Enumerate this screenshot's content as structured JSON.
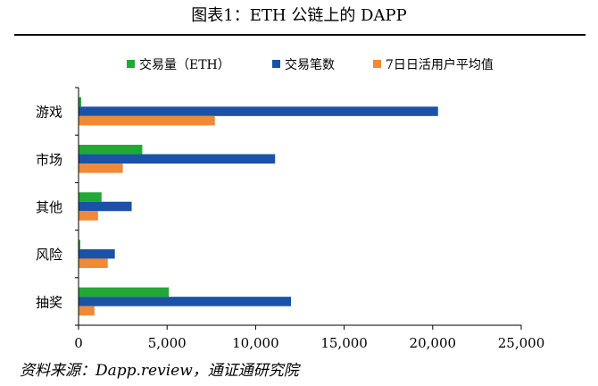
{
  "figure_title": "图表1：ETH 公链上的 DAPP",
  "source_note": "资料来源：Dapp.review，通证通研究院",
  "chart_data": {
    "type": "bar",
    "orientation": "horizontal",
    "title": "图表1：ETH 公链上的 DAPP",
    "categories": [
      "游戏",
      "市场",
      "其他",
      "风险",
      "抽奖"
    ],
    "series": [
      {
        "name": "交易量（ETH）",
        "color": "#20a935",
        "values": [
          150,
          3600,
          1300,
          100,
          5100
        ]
      },
      {
        "name": "交易笔数",
        "color": "#1a52a7",
        "values": [
          20300,
          11100,
          3000,
          2050,
          12000
        ]
      },
      {
        "name": "7日日活用户平均值",
        "color": "#f08a36",
        "values": [
          7700,
          2500,
          1100,
          1650,
          900
        ]
      }
    ],
    "xlim": [
      0,
      25000
    ],
    "xticks": [
      0,
      5000,
      10000,
      15000,
      20000,
      25000
    ],
    "xtick_labels": [
      "0",
      "5,000",
      "10,000",
      "15,000",
      "20,000",
      "25,000"
    ],
    "legend_position": "top",
    "grid": false
  }
}
